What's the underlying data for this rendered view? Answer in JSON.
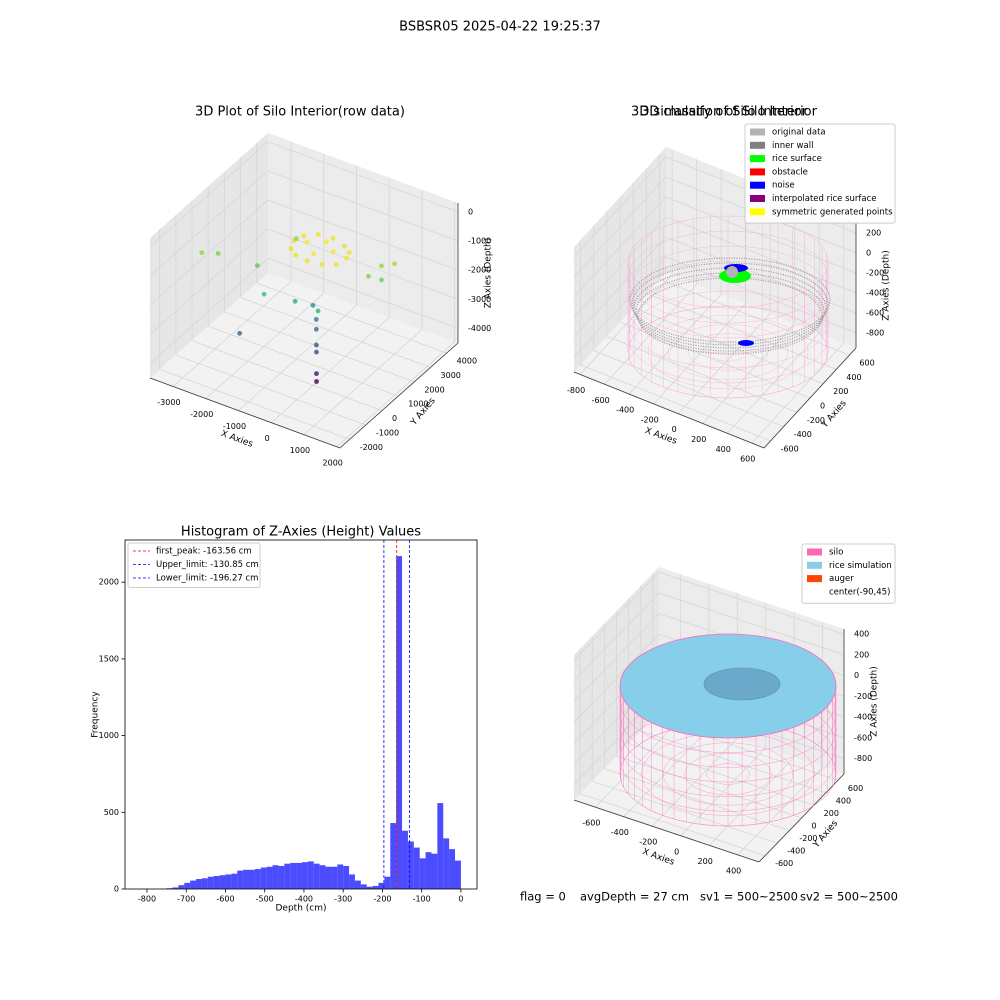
{
  "title": "BSBSR05 2025-04-22 19:25:37",
  "footer": [
    "flag = 0",
    "avgDepth = 27 cm",
    "sv1 = 500~2500",
    "sv2 = 500~2500"
  ],
  "chart_data": [
    {
      "type": "scatter3d",
      "title": "3D Plot of Silo Interior(row data)",
      "xlabel": "X Axies",
      "ylabel": "Y Axies",
      "zlabel": "Z Axies (Depth)",
      "xlim": [
        -3700,
        2100
      ],
      "ylim": [
        -2600,
        4700
      ],
      "zlim": [
        -4500,
        300
      ],
      "xticks": [
        -3000,
        -2000,
        -1000,
        0,
        1000,
        2000
      ],
      "yticks": [
        -2000,
        -1000,
        0,
        1000,
        2000,
        3000,
        4000
      ],
      "zticks": [
        -4000,
        -3000,
        -2000,
        -1000,
        0
      ],
      "colormap": "viridis",
      "x": [
        140,
        33,
        -260,
        -660,
        -1060,
        -1353,
        -1460,
        -1353,
        -1060,
        -660,
        -260,
        33,
        -260,
        -660,
        -1060,
        -660,
        700,
        900,
        600,
        1000,
        -3500,
        -3200,
        -2200,
        -1800,
        -1500,
        -800,
        0,
        -600,
        -400,
        -300,
        -2000,
        -200,
        -100,
        0,
        50
      ],
      "y": [
        1760,
        2160,
        2453,
        2560,
        2453,
        2160,
        1760,
        1360,
        1067,
        960,
        1067,
        1360,
        1760,
        2160,
        1760,
        1360,
        2800,
        2400,
        2200,
        3000,
        200,
        600,
        1000,
        2600,
        0,
        500,
        300,
        1200,
        1000,
        800,
        -500,
        600,
        400,
        200,
        100
      ],
      "values": [
        -950,
        -1000,
        -1050,
        -1000,
        -980,
        -1000,
        -1020,
        -1050,
        -1000,
        -980,
        -1000,
        -1020,
        -900,
        -920,
        -900,
        -930,
        -1500,
        -1700,
        -1600,
        -1400,
        -1500,
        -1600,
        -1800,
        -1500,
        -2000,
        -2200,
        -2100,
        -2600,
        -2900,
        -3100,
        -3300,
        -3500,
        -3600,
        -4200,
        -4400
      ]
    },
    {
      "type": "wireframe3d",
      "title": "3D classify of Silo Interior",
      "xlabel": "X Axies",
      "ylabel": "Y Axies",
      "zlabel": "Z Axies (Depth)",
      "xlim": [
        -850,
        700
      ],
      "ylim": [
        -700,
        700
      ],
      "zlim": [
        -950,
        300
      ],
      "xticks": [
        -800,
        -600,
        -400,
        -200,
        0,
        200,
        400,
        600
      ],
      "yticks": [
        -600,
        -400,
        -200,
        0,
        200,
        400,
        600
      ],
      "zticks": [
        -800,
        -600,
        -400,
        -200,
        0,
        200
      ],
      "legend": [
        {
          "name": "original data",
          "color": "#b3b3b3"
        },
        {
          "name": "inner wall",
          "color": "#808080"
        },
        {
          "name": "rice surface",
          "color": "#00ff00"
        },
        {
          "name": "obstacle",
          "color": "#ff0000"
        },
        {
          "name": "noise",
          "color": "#0000ff"
        },
        {
          "name": "interpolated rice surface",
          "color": "#800080"
        },
        {
          "name": "symmetric generated points",
          "color": "#ffff00"
        }
      ]
    },
    {
      "type": "histogram",
      "title": "Histogram of Z-Axies (Height) Values",
      "xlabel": "Depth (cm)",
      "ylabel": "Frequency",
      "xlim": [
        -856,
        41
      ],
      "ylim": [
        0,
        2275
      ],
      "xticks": [
        -800,
        -700,
        -600,
        -500,
        -400,
        -300,
        -200,
        -100,
        0
      ],
      "yticks": [
        0,
        500,
        1000,
        1500,
        2000
      ],
      "color": "#0000ff",
      "bins": [
        -750,
        -735,
        -720,
        -705,
        -690,
        -675,
        -660,
        -645,
        -630,
        -615,
        -600,
        -585,
        -570,
        -555,
        -540,
        -525,
        -510,
        -495,
        -480,
        -465,
        -450,
        -435,
        -420,
        -405,
        -390,
        -375,
        -360,
        -345,
        -330,
        -315,
        -300,
        -285,
        -270,
        -255,
        -240,
        -225,
        -210,
        -195,
        -180,
        -165,
        -150,
        -135,
        -120,
        -105,
        -90,
        -75,
        -60,
        -45,
        -30,
        -15,
        0
      ],
      "values": [
        5,
        10,
        25,
        40,
        55,
        65,
        70,
        80,
        85,
        90,
        95,
        100,
        120,
        125,
        125,
        130,
        140,
        145,
        155,
        150,
        165,
        170,
        170,
        175,
        180,
        165,
        155,
        145,
        145,
        160,
        150,
        95,
        55,
        30,
        15,
        20,
        40,
        80,
        430,
        2170,
        380,
        310,
        270,
        200,
        240,
        230,
        560,
        330,
        260,
        185
      ],
      "lines": [
        {
          "name": "first_peak: -163.56 cm",
          "value": -163.56,
          "color": "#ff0000"
        },
        {
          "name": "Upper_limit: -130.85 cm",
          "value": -130.85,
          "color": "#0000ff"
        },
        {
          "name": "Lower_limit: -196.27 cm",
          "value": -196.27,
          "color": "#0000ff"
        }
      ]
    },
    {
      "type": "wireframe3d",
      "title": "3D simulation of Silo Interior",
      "xlabel": "X Axies",
      "ylabel": "Y Axies",
      "zlabel": "Z Axies (Depth)",
      "xlim": [
        -750,
        550
      ],
      "ylim": [
        -700,
        700
      ],
      "zlim": [
        -950,
        450
      ],
      "xticks": [
        -600,
        -400,
        -200,
        0,
        200,
        400
      ],
      "yticks": [
        -600,
        -400,
        -200,
        0,
        200,
        400,
        600
      ],
      "zticks": [
        -800,
        -600,
        -400,
        -200,
        0,
        200,
        400
      ],
      "legend": [
        {
          "name": "silo",
          "color": "#ff69b4"
        },
        {
          "name": "rice simulation",
          "color": "#87ceeb"
        },
        {
          "name": "auger",
          "color": "#ff4500"
        },
        {
          "name": "center(-90,45)"
        }
      ]
    }
  ]
}
